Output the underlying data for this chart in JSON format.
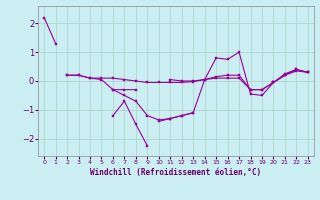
{
  "xlabel": "Windchill (Refroidissement éolien,°C)",
  "background_color": "#cbeef3",
  "grid_color": "#aad8cc",
  "line_color": "#990099",
  "ylim": [
    -2.6,
    2.6
  ],
  "yticks": [
    -2,
    -1,
    0,
    1,
    2
  ],
  "xlim": [
    0,
    23
  ],
  "xticks": [
    0,
    1,
    2,
    3,
    4,
    5,
    6,
    7,
    8,
    9,
    10,
    11,
    12,
    13,
    14,
    15,
    16,
    17,
    18,
    19,
    20,
    21,
    22,
    23
  ],
  "series": [
    [
      0,
      2.2,
      1,
      1.3
    ],
    [
      2,
      0.2,
      3,
      0.2,
      4,
      0.1,
      5,
      0.1,
      6,
      0.1,
      7,
      0.05,
      8,
      0.0,
      9,
      -0.05,
      10,
      -0.05,
      11,
      -0.05,
      12,
      -0.05,
      13,
      -0.02,
      14,
      0.05,
      15,
      0.1,
      16,
      0.1,
      17,
      0.1,
      18,
      -0.3,
      19,
      -0.3,
      20,
      -0.05,
      21,
      0.2,
      22,
      0.35,
      23,
      0.3
    ],
    [
      2,
      0.2,
      3,
      0.2,
      4,
      0.1,
      5,
      0.05,
      6,
      -0.3,
      7,
      -0.3,
      8,
      -0.3
    ],
    [
      6,
      -0.3,
      7,
      -0.5,
      8,
      -0.7,
      9,
      -1.2,
      10,
      -1.35,
      11,
      -1.3,
      12,
      -1.2,
      13,
      -1.1
    ],
    [
      6,
      -1.2,
      7,
      -0.7,
      8,
      -1.5,
      9,
      -2.25
    ],
    [
      10,
      -1.4,
      11,
      -1.3,
      12,
      -1.2,
      13,
      -1.1,
      14,
      0.05,
      15,
      0.8,
      16,
      0.75,
      17,
      1.0,
      18,
      -0.45,
      19,
      -0.5,
      20,
      -0.05,
      21,
      0.25,
      22,
      0.4,
      23,
      0.3
    ],
    [
      11,
      0.05,
      12,
      0.0,
      13,
      0.0,
      14,
      0.05,
      15,
      0.15,
      16,
      0.2,
      17,
      0.2,
      18,
      -0.3,
      19,
      -0.3,
      20,
      -0.05,
      21,
      0.2,
      22,
      0.4,
      23,
      0.3
    ]
  ]
}
